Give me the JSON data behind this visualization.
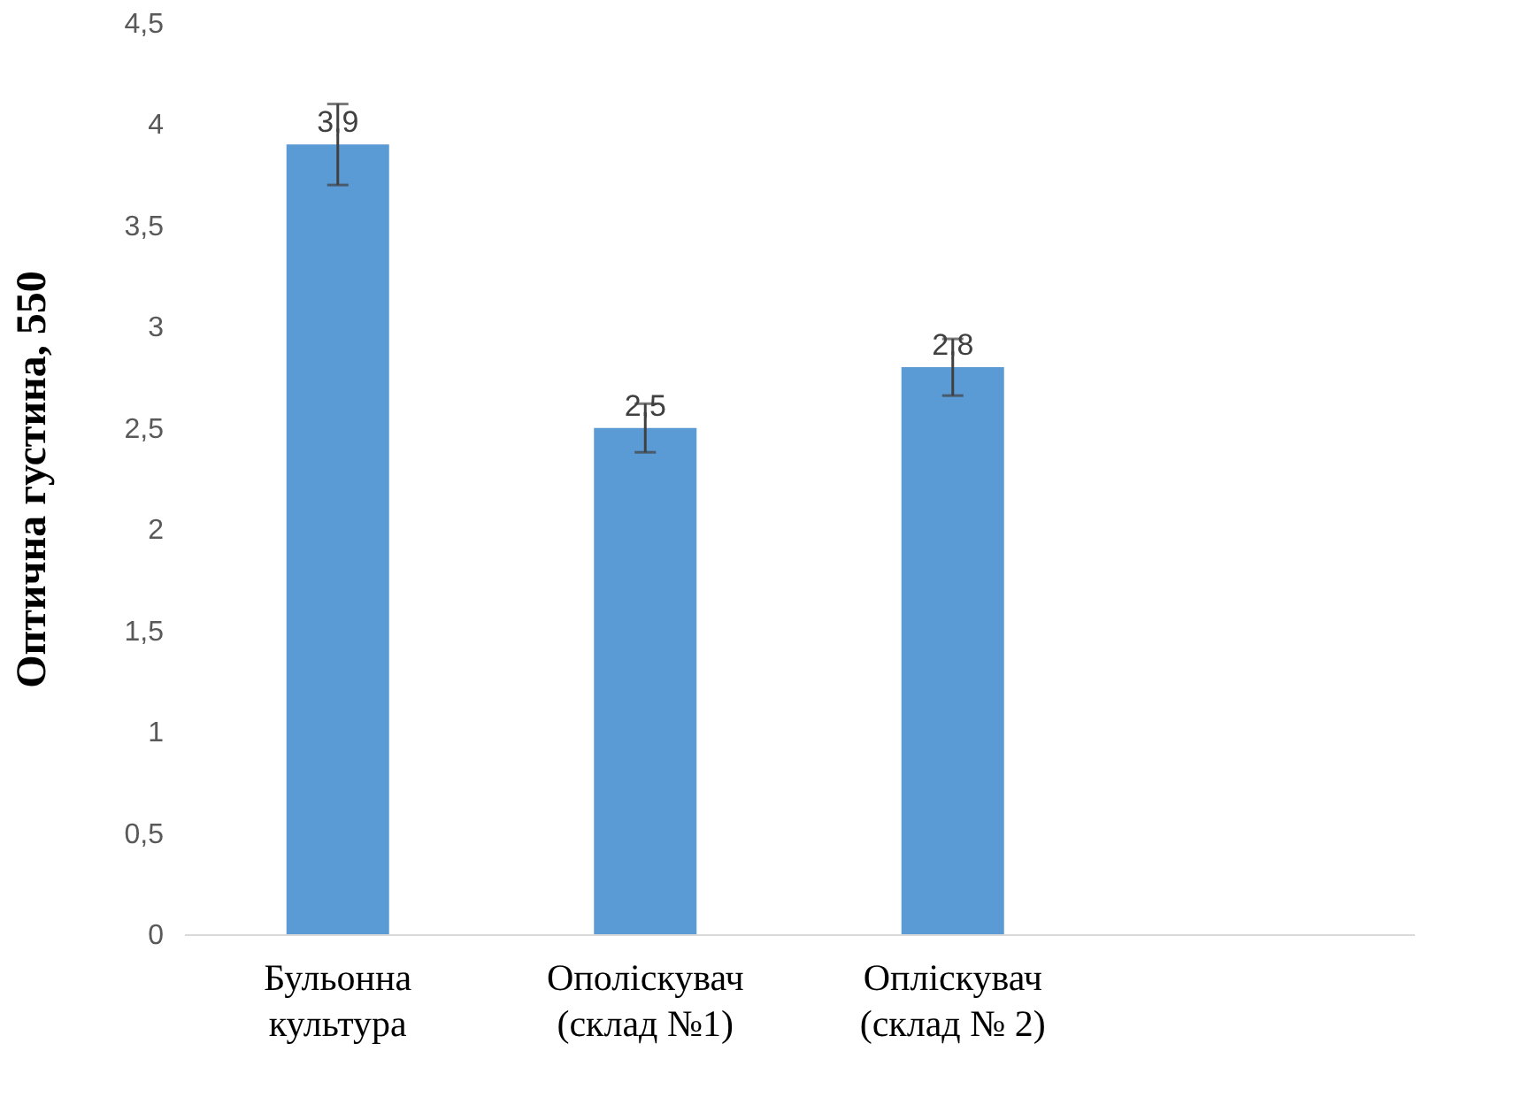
{
  "chart_data": {
    "type": "bar",
    "ylabel": "Оптична густина, 550",
    "categories": [
      "Бульонна\nкультура",
      "Ополіскувач\n(склад №1)",
      "Оплiскувач\n(склад № 2)",
      null
    ],
    "values": [
      3.9,
      2.5,
      2.8,
      null
    ],
    "color": "#5b9bd5",
    "errors": [
      0.2,
      0.12,
      0.14,
      null
    ],
    "value_labels": [
      "3,9",
      "2,5",
      "2,8",
      null
    ],
    "ylim": [
      0,
      4.5
    ],
    "yticks": [
      0,
      {
        "value": 0.5,
        "label": "0,5"
      },
      1,
      {
        "value": 1.5,
        "label": "1,5"
      },
      2,
      {
        "value": 2.5,
        "label": "2,5"
      },
      3,
      {
        "value": 3.5,
        "label": "3,5"
      },
      4,
      {
        "value": 4.5,
        "label": "4,5"
      }
    ],
    "grid": false
  }
}
